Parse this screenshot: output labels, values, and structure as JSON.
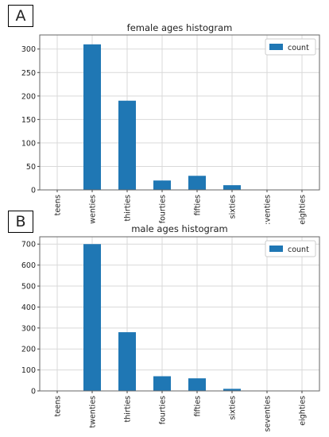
{
  "panels": [
    {
      "label": "A"
    },
    {
      "label": "B"
    }
  ],
  "chart_data": [
    {
      "type": "bar",
      "title": "female ages histogram",
      "categories": [
        "teens",
        "wenties",
        "thirties",
        "fourties",
        "fifties",
        "sixties",
        ":venties",
        "eighties"
      ],
      "series": [
        {
          "name": "count",
          "values": [
            0,
            310,
            190,
            20,
            30,
            10,
            0,
            0
          ],
          "color": "#1f77b4"
        }
      ],
      "ylim": [
        0,
        330
      ],
      "yticks": [
        0,
        50,
        100,
        150,
        200,
        250,
        300
      ],
      "grid": true,
      "legend": "top-right"
    },
    {
      "type": "bar",
      "title": "male ages histogram",
      "categories": [
        "teens",
        "twenties",
        "thirties",
        "fourties",
        "fifties",
        "sixties",
        "seventies",
        "eighties"
      ],
      "series": [
        {
          "name": "count",
          "values": [
            0,
            700,
            280,
            70,
            60,
            10,
            0,
            0
          ],
          "color": "#1f77b4"
        }
      ],
      "ylim": [
        0,
        735
      ],
      "yticks": [
        0,
        100,
        200,
        300,
        400,
        500,
        600,
        700
      ],
      "grid": true,
      "legend": "top-right"
    }
  ]
}
